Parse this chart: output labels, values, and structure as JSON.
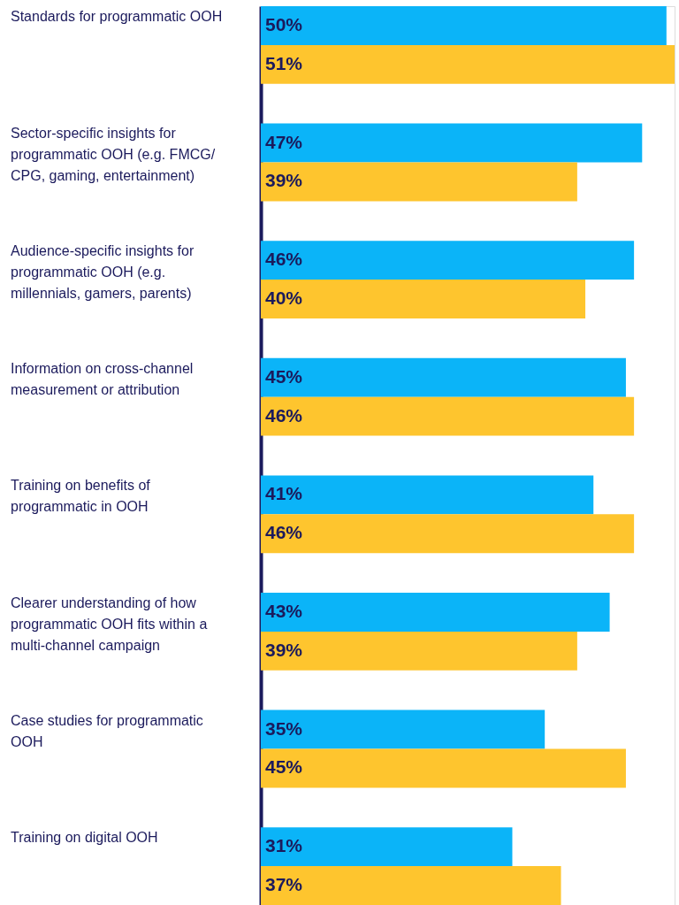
{
  "chart_data": {
    "type": "bar",
    "orientation": "horizontal",
    "categories": [
      "Standards for programmatic OOH",
      "Sector-specific insights for programmatic OOH (e.g. FMCG/ CPG, gaming, entertainment)",
      "Audience-specific insights for programmatic OOH (e.g. millennials, gamers, parents)",
      "Information on cross-channel measurement or attribution",
      "Training on benefits of programmatic in OOH",
      "Clearer understanding of how programmatic OOH fits within a multi-channel campaign",
      "Case studies for programmatic OOH",
      "Training on digital OOH"
    ],
    "series": [
      {
        "color": "#0bb4f8",
        "values": [
          50,
          47,
          46,
          45,
          41,
          43,
          35,
          31
        ],
        "value_labels": [
          "50%",
          "47%",
          "46%",
          "45%",
          "41%",
          "43%",
          "35%",
          "31%"
        ]
      },
      {
        "color": "#fec52e",
        "values": [
          51,
          39,
          40,
          46,
          46,
          39,
          45,
          37
        ],
        "value_labels": [
          "51%",
          "39%",
          "40%",
          "46%",
          "46%",
          "39%",
          "45%",
          "37%"
        ]
      }
    ]
  }
}
